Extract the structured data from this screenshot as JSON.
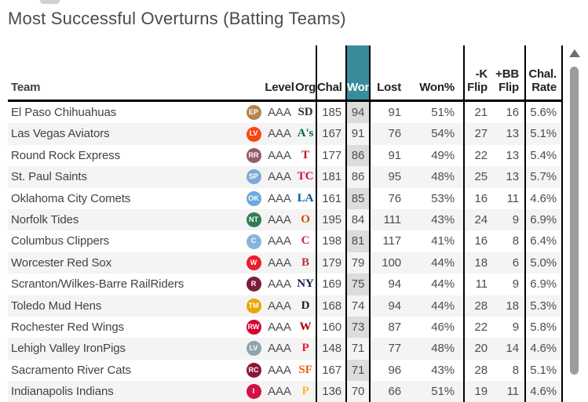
{
  "title": "Most Successful Overturns (Batting Teams)",
  "header": {
    "team": "Team",
    "level": "Level",
    "org": "Org",
    "chal": "Chal",
    "won": "Won",
    "lost": "Lost",
    "won_pct": "Won%",
    "k_flip": "-K\nFlip",
    "bb_flip": "+BB\nFlip",
    "chal_rate": "Chal.\nRate"
  },
  "colors": {
    "accent_teal": "#388c9b",
    "won_column_bg": "#dcdcdc",
    "row_stripe": "#f4f4f4",
    "scrollbar_thumb": "#9c9c9c",
    "border": "#000000"
  },
  "chart_data": {
    "type": "table",
    "title": "Most Successful Overturns (Batting Teams)",
    "columns": [
      "Team",
      "Level",
      "Org",
      "Chal",
      "Won",
      "Lost",
      "Won%",
      "-K Flip",
      "+BB Flip",
      "Chal. Rate"
    ],
    "sorted_by": "Won"
  },
  "rows": [
    {
      "team": "El Paso Chihuahuas",
      "logo": {
        "text": "EP",
        "bg": "#b5854f"
      },
      "level": "AAA",
      "org": {
        "text": "SD",
        "color": "#3e2b20"
      },
      "chal": "185",
      "won": "94",
      "lost": "91",
      "won_pct": "51%",
      "k_flip": "21",
      "bb_flip": "16",
      "chal_rate": "5.6%"
    },
    {
      "team": "Las Vegas Aviators",
      "logo": {
        "text": "LV",
        "bg": "#fa4616"
      },
      "level": "AAA",
      "org": {
        "text": "A's",
        "color": "#046a38"
      },
      "chal": "167",
      "won": "91",
      "lost": "76",
      "won_pct": "54%",
      "k_flip": "27",
      "bb_flip": "13",
      "chal_rate": "5.1%"
    },
    {
      "team": "Round Rock Express",
      "logo": {
        "text": "RR",
        "bg": "#9a5b68"
      },
      "level": "AAA",
      "org": {
        "text": "T",
        "color": "#c0111f"
      },
      "chal": "177",
      "won": "86",
      "lost": "91",
      "won_pct": "49%",
      "k_flip": "22",
      "bb_flip": "13",
      "chal_rate": "5.4%"
    },
    {
      "team": "St. Paul Saints",
      "logo": {
        "text": "SP",
        "bg": "#7fa8d6"
      },
      "level": "AAA",
      "org": {
        "text": "TC",
        "color": "#d31145"
      },
      "chal": "181",
      "won": "86",
      "lost": "95",
      "won_pct": "48%",
      "k_flip": "25",
      "bb_flip": "13",
      "chal_rate": "5.7%"
    },
    {
      "team": "Oklahoma City Comets",
      "logo": {
        "text": "OK",
        "bg": "#6ca9dc"
      },
      "level": "AAA",
      "org": {
        "text": "LA",
        "color": "#005a9c"
      },
      "chal": "161",
      "won": "85",
      "lost": "76",
      "won_pct": "53%",
      "k_flip": "16",
      "bb_flip": "11",
      "chal_rate": "4.6%"
    },
    {
      "team": "Norfolk Tides",
      "logo": {
        "text": "NT",
        "bg": "#2e7d54"
      },
      "level": "AAA",
      "org": {
        "text": "O",
        "color": "#df4601"
      },
      "chal": "195",
      "won": "84",
      "lost": "111",
      "won_pct": "43%",
      "k_flip": "24",
      "bb_flip": "9",
      "chal_rate": "6.9%"
    },
    {
      "team": "Columbus Clippers",
      "logo": {
        "text": "C",
        "bg": "#84b5dc"
      },
      "level": "AAA",
      "org": {
        "text": "C",
        "color": "#e31937"
      },
      "chal": "198",
      "won": "81",
      "lost": "117",
      "won_pct": "41%",
      "k_flip": "16",
      "bb_flip": "8",
      "chal_rate": "6.4%"
    },
    {
      "team": "Worcester Red Sox",
      "logo": {
        "text": "W",
        "bg": "#eb1c2d"
      },
      "level": "AAA",
      "org": {
        "text": "B",
        "color": "#bd3039"
      },
      "chal": "179",
      "won": "79",
      "lost": "100",
      "won_pct": "44%",
      "k_flip": "18",
      "bb_flip": "6",
      "chal_rate": "5.0%"
    },
    {
      "team": "Scranton/Wilkes-Barre RailRiders",
      "logo": {
        "text": "R",
        "bg": "#7a1e3a"
      },
      "level": "AAA",
      "org": {
        "text": "NY",
        "color": "#132448"
      },
      "chal": "169",
      "won": "75",
      "lost": "94",
      "won_pct": "44%",
      "k_flip": "11",
      "bb_flip": "9",
      "chal_rate": "6.9%"
    },
    {
      "team": "Toledo Mud Hens",
      "logo": {
        "text": "TM",
        "bg": "#e8a800"
      },
      "level": "AAA",
      "org": {
        "text": "D",
        "color": "#0c2340"
      },
      "chal": "168",
      "won": "74",
      "lost": "94",
      "won_pct": "44%",
      "k_flip": "28",
      "bb_flip": "18",
      "chal_rate": "5.3%"
    },
    {
      "team": "Rochester Red Wings",
      "logo": {
        "text": "RW",
        "bg": "#d50032"
      },
      "level": "AAA",
      "org": {
        "text": "W",
        "color": "#ab0003"
      },
      "chal": "160",
      "won": "73",
      "lost": "87",
      "won_pct": "46%",
      "k_flip": "22",
      "bb_flip": "9",
      "chal_rate": "5.8%"
    },
    {
      "team": "Lehigh Valley IronPigs",
      "logo": {
        "text": "LV",
        "bg": "#8fa3ad"
      },
      "level": "AAA",
      "org": {
        "text": "P",
        "color": "#e81828"
      },
      "chal": "148",
      "won": "71",
      "lost": "77",
      "won_pct": "48%",
      "k_flip": "20",
      "bb_flip": "14",
      "chal_rate": "4.6%"
    },
    {
      "team": "Sacramento River Cats",
      "logo": {
        "text": "RC",
        "bg": "#8a1538"
      },
      "level": "AAA",
      "org": {
        "text": "SF",
        "color": "#fd5a1e"
      },
      "chal": "167",
      "won": "71",
      "lost": "96",
      "won_pct": "43%",
      "k_flip": "28",
      "bb_flip": "8",
      "chal_rate": "5.1%"
    },
    {
      "team": "Indianapolis Indians",
      "logo": {
        "text": "I",
        "bg": "#d31145"
      },
      "level": "AAA",
      "org": {
        "text": "P",
        "color": "#fdb827"
      },
      "chal": "136",
      "won": "70",
      "lost": "66",
      "won_pct": "51%",
      "k_flip": "19",
      "bb_flip": "11",
      "chal_rate": "4.6%"
    }
  ]
}
